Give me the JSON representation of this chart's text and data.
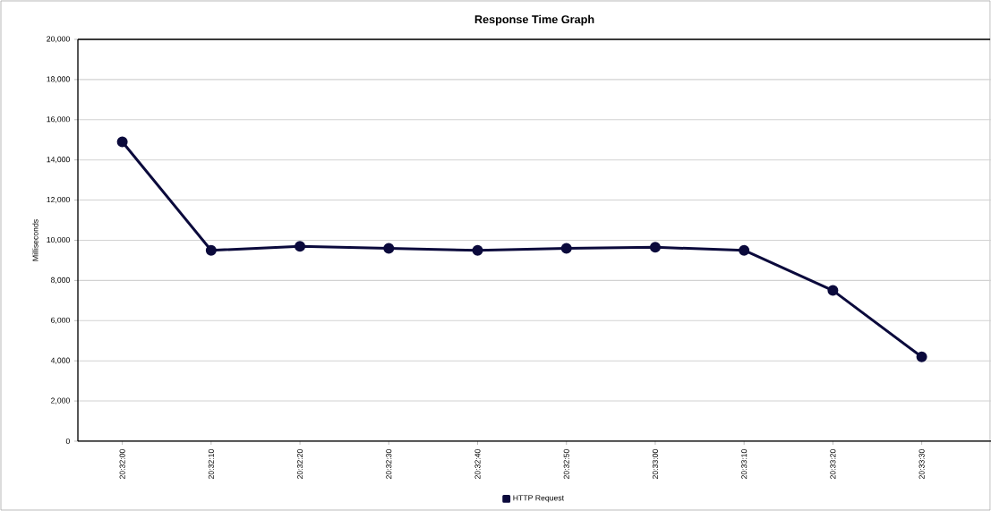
{
  "chart_data": {
    "type": "line",
    "title": "Response Time Graph",
    "ylabel": "Milliseconds",
    "categories": [
      "20:32:00",
      "20:32:10",
      "20:32:20",
      "20:32:30",
      "20:32:40",
      "20:32:50",
      "20:33:00",
      "20:33:10",
      "20:33:20",
      "20:33:30"
    ],
    "series": [
      {
        "name": "HTTP Request",
        "color": "#0b0a3c",
        "values": [
          14900,
          9500,
          9700,
          9600,
          9500,
          9600,
          9650,
          9500,
          7500,
          4200
        ]
      }
    ],
    "ylim": [
      0,
      20000
    ],
    "yticks": [
      0,
      {
        "value": 2000,
        "label": "2,000"
      },
      {
        "value": 4000,
        "label": "4,000"
      },
      {
        "value": 6000,
        "label": "6,000"
      },
      {
        "value": 8000,
        "label": "8,000"
      },
      {
        "value": 10000,
        "label": "10,000"
      },
      {
        "value": 12000,
        "label": "12,000"
      },
      {
        "value": 14000,
        "label": "14,000"
      },
      {
        "value": 16000,
        "label": "16,000"
      },
      {
        "value": 18000,
        "label": "18,000"
      },
      {
        "value": 20000,
        "label": "20,000"
      }
    ],
    "grid": "y",
    "legend": "bottom",
    "marker": "circle",
    "line_style": "solid"
  }
}
